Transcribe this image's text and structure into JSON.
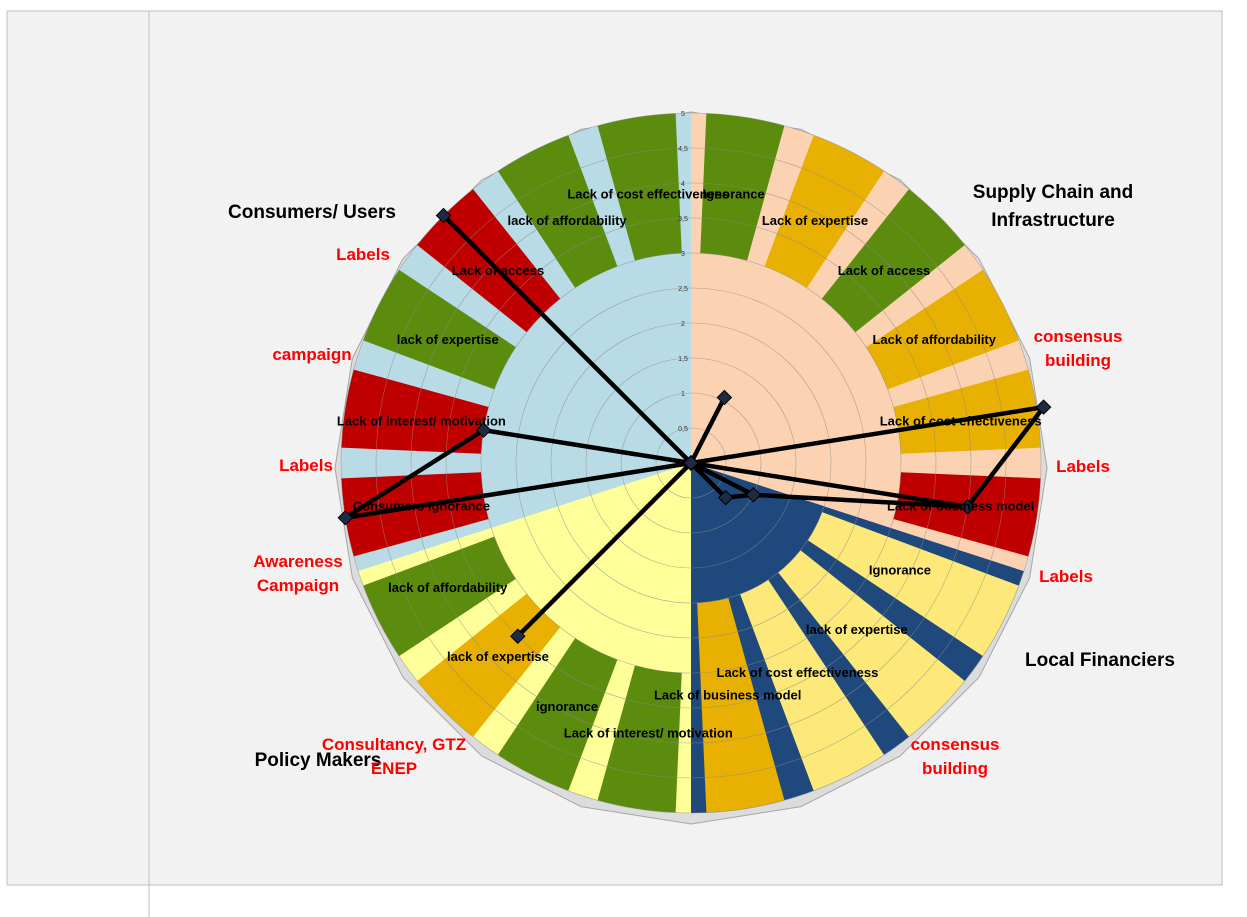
{
  "chart_data": {
    "type": "radar",
    "axis": {
      "max": 5,
      "tick_labels": [
        "0,5",
        "1",
        "1,5",
        "2",
        "2,5",
        "3",
        "3,5",
        "4",
        "4,5",
        "5"
      ]
    },
    "colors": {
      "green": "#5b8c0e",
      "orange": "#e8b000",
      "red": "#c00000",
      "light_blue": "#b8dbe6",
      "peach": "#fbd3b2",
      "pale_yellow": "#ffff99",
      "navy": "#1f497d",
      "yellow": "#fde979",
      "spoke": "#000000",
      "action_text": "#ff0000"
    },
    "groups": [
      {
        "name": "Supply Chain and Infrastructure",
        "background": "peach",
        "base": 3
      },
      {
        "name": "Local Financiers",
        "background": "navy",
        "base": 2
      },
      {
        "name": "Policy Makers",
        "background": "pale_yellow",
        "base": 3
      },
      {
        "name": "Consumers/ Users",
        "background": "light_blue",
        "base": 3
      }
    ],
    "segments": [
      {
        "label": "Ignorance",
        "group": "Supply Chain and Infrastructure",
        "color": "green"
      },
      {
        "label": "Lack of expertise",
        "group": "Supply Chain and Infrastructure",
        "color": "orange"
      },
      {
        "label": "Lack of access",
        "group": "Supply Chain and Infrastructure",
        "color": "green"
      },
      {
        "label": "Lack of affordability",
        "group": "Supply Chain and Infrastructure",
        "color": "orange"
      },
      {
        "label": "Lack of cost effectiveness",
        "group": "Supply Chain and Infrastructure",
        "color": "orange"
      },
      {
        "label": "Lack of business model",
        "group": "Supply Chain and Infrastructure",
        "color": "red"
      },
      {
        "label": "Ignorance",
        "group": "Local Financiers",
        "color": "yellow"
      },
      {
        "label": "lack of expertise",
        "group": "Local Financiers",
        "color": "yellow"
      },
      {
        "label": "Lack of cost effectiveness",
        "group": "Local Financiers",
        "color": "yellow"
      },
      {
        "label": "Lack of business model",
        "group": "Local Financiers",
        "color": "orange"
      },
      {
        "label": "Lack of interest/ motivation",
        "group": "Policy Makers",
        "color": "green"
      },
      {
        "label": "ignorance",
        "group": "Policy Makers",
        "color": "green"
      },
      {
        "label": "lack of expertise",
        "group": "Policy Makers",
        "color": "orange"
      },
      {
        "label": "lack of affordability",
        "group": "Policy Makers",
        "color": "green"
      },
      {
        "label": "Consumers Ignorance",
        "group": "Consumers/ Users",
        "color": "red"
      },
      {
        "label": "Lack of interest/ motivation",
        "group": "Consumers/ Users",
        "color": "red"
      },
      {
        "label": "lack of expertise",
        "group": "Consumers/ Users",
        "color": "green"
      },
      {
        "label": "Lack of access",
        "group": "Consumers/ Users",
        "color": "red"
      },
      {
        "label": "lack of affordability",
        "group": "Consumers/ Users",
        "color": "green"
      },
      {
        "label": "Lack of cost effectiveness",
        "group": "Consumers/ Users",
        "color": "green"
      }
    ],
    "series_values": [
      0,
      1.05,
      0,
      0,
      5.1,
      4,
      1,
      0.7,
      0,
      0,
      0,
      0,
      3.5,
      0,
      5,
      3,
      0,
      5,
      0,
      0
    ],
    "action_labels": [
      {
        "text": "consensus building"
      },
      {
        "text": "Labels"
      },
      {
        "text": "Labels"
      },
      {
        "text": "consensus building"
      },
      {
        "text": "Consultancy, GTZ ENEP"
      },
      {
        "text": "Awareness Campaign"
      },
      {
        "text": "Labels"
      },
      {
        "text": "campaign"
      },
      {
        "text": "Labels"
      }
    ]
  }
}
